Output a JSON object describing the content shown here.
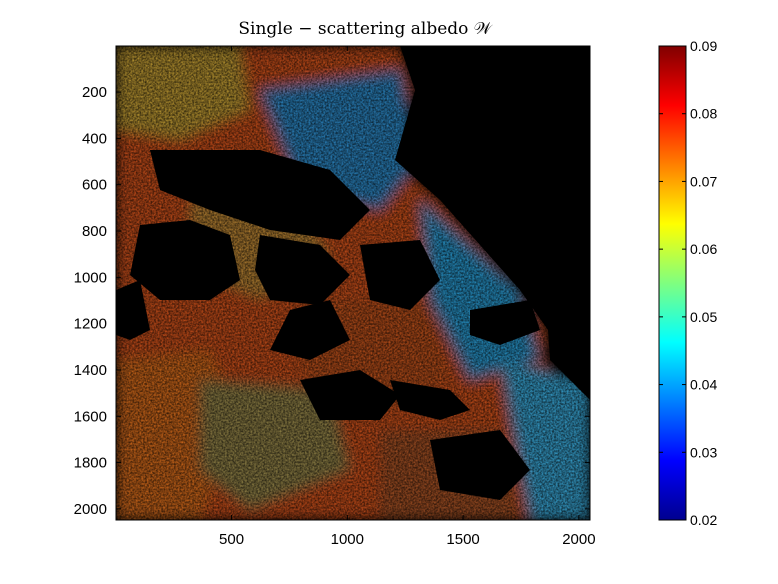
{
  "chart_data": {
    "type": "heatmap",
    "title": "Single − scattering albedo 𝒲",
    "xlabel": "",
    "ylabel": "",
    "xlim": [
      1,
      2048
    ],
    "ylim": [
      1,
      2048
    ],
    "x_ticks": [
      "500",
      "1000",
      "1500",
      "2000"
    ],
    "y_ticks": [
      "200",
      "400",
      "600",
      "800",
      "1000",
      "1200",
      "1400",
      "1600",
      "1800",
      "2000"
    ],
    "colorbar": {
      "colormap": "jet",
      "range": [
        0.02,
        0.09
      ],
      "ticks": [
        "0.02",
        "0.03",
        "0.04",
        "0.05",
        "0.06",
        "0.07",
        "0.08",
        "0.09"
      ]
    },
    "background_color": "#000000"
  }
}
